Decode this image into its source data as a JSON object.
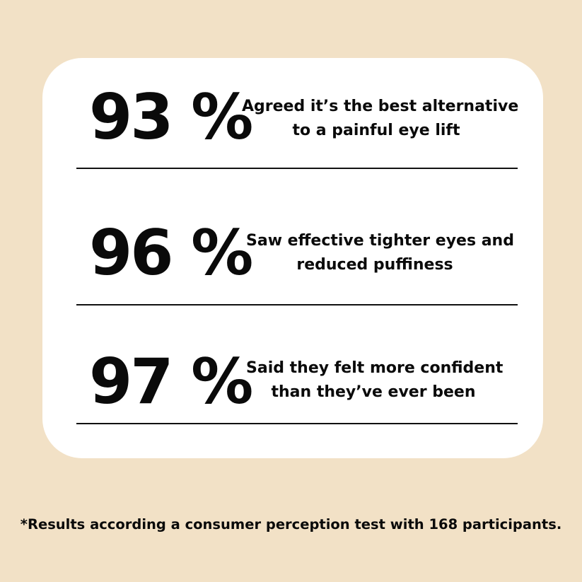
{
  "stats": [
    {
      "value": "93 %",
      "line1": "Agreed it’s the best alternative",
      "line2": "to a painful eye lift"
    },
    {
      "value": "96 %",
      "line1": "Saw effective tighter eyes and",
      "line2": "reduced puffiness"
    },
    {
      "value": "97 %",
      "line1": "Said they felt more confident",
      "line2": "than they’ve ever been"
    }
  ],
  "footnote": "*Results according a consumer perception test with 168 participants.",
  "colors": {
    "background": "#f2e1c6",
    "card": "#ffffff",
    "text": "#0a0a0a"
  }
}
